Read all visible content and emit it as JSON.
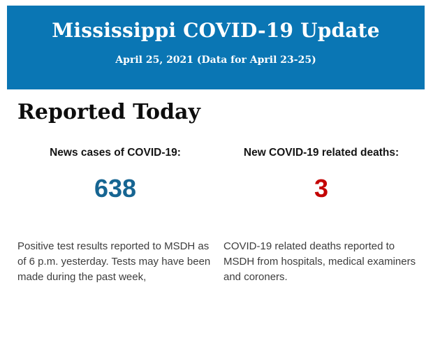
{
  "banner": {
    "title": "Mississippi COVID-19 Update",
    "subtitle": "April 25, 2021 (Data for April 23-25)"
  },
  "section_title": "Reported Today",
  "stats": [
    {
      "id": "new-cases",
      "label": "News cases of COVID-19:",
      "value": "638",
      "value_color": "#166592",
      "description": "Positive test results reported to MSDH as\nof 6 p.m. yesterday. Tests may have been\nmade during the past week,"
    },
    {
      "id": "related-deaths",
      "label": "New COVID-19 related deaths:",
      "value": "3",
      "value_color": "#c40404",
      "description": "COVID-19 related deaths reported to\nMSDH from hospitals, medical examiners\nand coroners."
    }
  ],
  "colors": {
    "banner_bg": "#0a76b4",
    "banner_text": "#ffffff",
    "section_title_text": "#0d0d0d",
    "cases_value": "#166592",
    "deaths_value": "#c40404",
    "body_text": "#3d3d3d"
  }
}
